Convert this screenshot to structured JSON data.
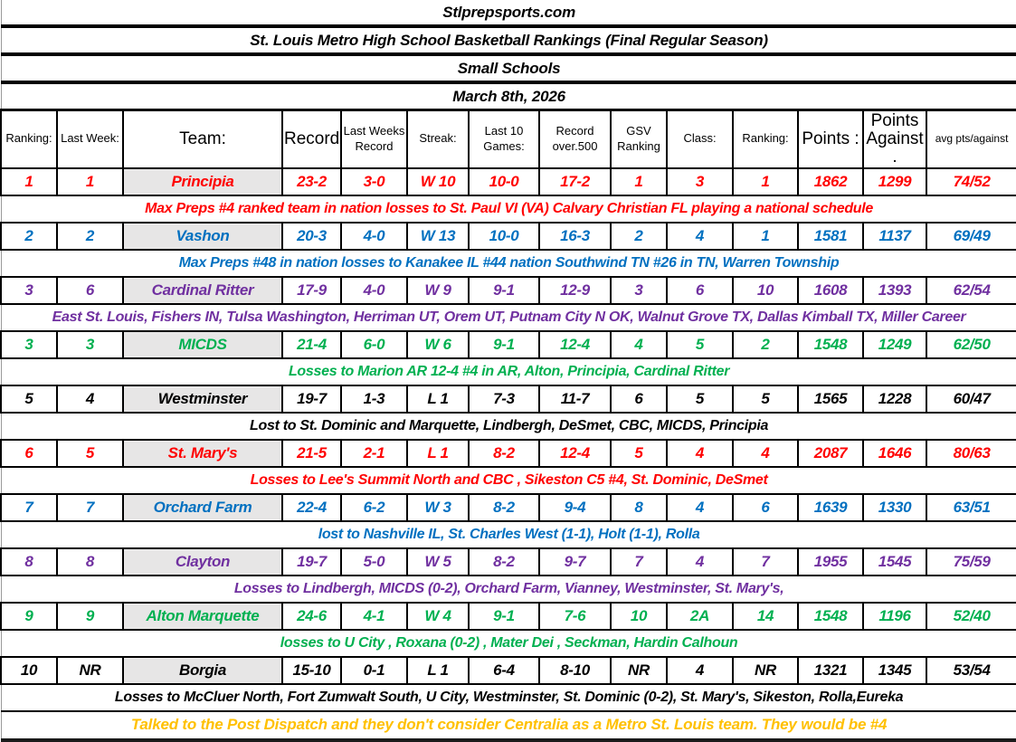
{
  "titles": {
    "site": "Stlprepsports.com",
    "main": "St. Louis Metro High School Basketball Rankings (Final Regular Season)",
    "division": "Small Schools",
    "date": "March 8th, 2026"
  },
  "column_keys": [
    "ranking",
    "last_week",
    "team",
    "record",
    "last_weeks_record",
    "streak",
    "last_10",
    "over_500",
    "gsv",
    "class",
    "class_ranking",
    "points",
    "points_against",
    "avg"
  ],
  "columns": [
    {
      "key": "ranking",
      "label": "Ranking:"
    },
    {
      "key": "last_week",
      "label": "Last Week:"
    },
    {
      "key": "team",
      "label": "Team:"
    },
    {
      "key": "record",
      "label": "Record:"
    },
    {
      "key": "last_weeks_record",
      "label": "Last Weeks Record"
    },
    {
      "key": "streak",
      "label": "Streak:"
    },
    {
      "key": "last_10",
      "label": "Last 10 Games:"
    },
    {
      "key": "over_500",
      "label": "Record over.500"
    },
    {
      "key": "gsv",
      "label": "GSV Ranking"
    },
    {
      "key": "class",
      "label": "Class:"
    },
    {
      "key": "class_ranking",
      "label": "Ranking:"
    },
    {
      "key": "points",
      "label": "Points :"
    },
    {
      "key": "points_against",
      "label": "Points Against ."
    },
    {
      "key": "avg",
      "label": "avg pts/against"
    }
  ],
  "colors": {
    "red": "#FF0000",
    "blue": "#0070C0",
    "purple": "#7030A0",
    "green": "#00B050",
    "black": "#000000",
    "gold": "#FFC000",
    "team_cell_bg": "#E7E6E6"
  },
  "teams": [
    {
      "color": "red",
      "ranking": "1",
      "last_week": "1",
      "team": "Principia",
      "record": "23-2",
      "last_weeks_record": "3-0",
      "streak": "W 10",
      "last_10": "10-0",
      "over_500": "17-2",
      "gsv": "1",
      "class": "3",
      "class_ranking": "1",
      "points": "1862",
      "points_against": "1299",
      "avg": "74/52",
      "note": "Max Preps #4 ranked team in nation losses to St. Paul VI (VA) Calvary Christian FL playing a national schedule"
    },
    {
      "color": "blue",
      "ranking": "2",
      "last_week": "2",
      "team": "Vashon",
      "record": "20-3",
      "last_weeks_record": "4-0",
      "streak": "W 13",
      "last_10": "10-0",
      "over_500": "16-3",
      "gsv": "2",
      "class": "4",
      "class_ranking": "1",
      "points": "1581",
      "points_against": "1137",
      "avg": "69/49",
      "note": "Max Preps #48 in nation  losses to Kanakee IL #44 nation Southwind TN #26 in TN, Warren Township"
    },
    {
      "color": "purple",
      "ranking": "3",
      "last_week": "6",
      "team": "Cardinal Ritter",
      "record": "17-9",
      "last_weeks_record": "4-0",
      "streak": "W 9",
      "last_10": "9-1",
      "over_500": "12-9",
      "gsv": "3",
      "class": "6",
      "class_ranking": "10",
      "points": "1608",
      "points_against": "1393",
      "avg": "62/54",
      "note": "East St. Louis, Fishers IN, Tulsa Washington, Herriman UT, Orem UT, Putnam City N OK, Walnut Grove TX, Dallas Kimball TX, Miller Career"
    },
    {
      "color": "green",
      "ranking": "3",
      "last_week": "3",
      "team": "MICDS",
      "record": "21-4",
      "last_weeks_record": "6-0",
      "streak": "W 6",
      "last_10": "9-1",
      "over_500": "12-4",
      "gsv": "4",
      "class": "5",
      "class_ranking": "2",
      "points": "1548",
      "points_against": "1249",
      "avg": "62/50",
      "note": "Losses to Marion AR 12-4  #4 in AR, Alton, Principia, Cardinal Ritter"
    },
    {
      "color": "black",
      "ranking": "5",
      "last_week": "4",
      "team": "Westminster",
      "record": "19-7",
      "last_weeks_record": "1-3",
      "streak": "L 1",
      "last_10": "7-3",
      "over_500": "11-7",
      "gsv": "6",
      "class": "5",
      "class_ranking": "5",
      "points": "1565",
      "points_against": "1228",
      "avg": "60/47",
      "note": "Lost to St. Dominic and Marquette, Lindbergh, DeSmet, CBC, MICDS, Principia"
    },
    {
      "color": "red",
      "ranking": "6",
      "last_week": "5",
      "team": "St. Mary's",
      "record": "21-5",
      "last_weeks_record": "2-1",
      "streak": "L 1",
      "last_10": "8-2",
      "over_500": "12-4",
      "gsv": "5",
      "class": "4",
      "class_ranking": "4",
      "points": "2087",
      "points_against": "1646",
      "avg": "80/63",
      "note": "Losses to Lee's Summit North  and CBC , Sikeston C5 #4, St. Dominic, DeSmet"
    },
    {
      "color": "blue",
      "ranking": "7",
      "last_week": "7",
      "team": "Orchard Farm",
      "record": "22-4",
      "last_weeks_record": "6-2",
      "streak": "W 3",
      "last_10": "8-2",
      "over_500": "9-4",
      "gsv": "8",
      "class": "4",
      "class_ranking": "6",
      "points": "1639",
      "points_against": "1330",
      "avg": "63/51",
      "note": "lost to Nashville IL, St. Charles West (1-1), Holt (1-1), Rolla"
    },
    {
      "color": "purple",
      "ranking": "8",
      "last_week": "8",
      "team": "Clayton",
      "record": "19-7",
      "last_weeks_record": "5-0",
      "streak": "W 5",
      "last_10": "8-2",
      "over_500": "9-7",
      "gsv": "7",
      "class": "4",
      "class_ranking": "7",
      "points": "1955",
      "points_against": "1545",
      "avg": "75/59",
      "note": "Losses to Lindbergh, MICDS (0-2), Orchard Farm, Vianney, Westminster, St. Mary's,"
    },
    {
      "color": "green",
      "ranking": "9",
      "last_week": "9",
      "team": "Alton Marquette",
      "record": "24-6",
      "last_weeks_record": "4-1",
      "streak": "W 4",
      "last_10": "9-1",
      "over_500": "7-6",
      "gsv": "10",
      "class": "2A",
      "class_ranking": "14",
      "points": "1548",
      "points_against": "1196",
      "avg": "52/40",
      "note": "losses to U City , Roxana (0-2) , Mater Dei , Seckman, Hardin Calhoun"
    },
    {
      "color": "black",
      "ranking": "10",
      "last_week": "NR",
      "team": "Borgia",
      "record": "15-10",
      "last_weeks_record": "0-1",
      "streak": "L 1",
      "last_10": "6-4",
      "over_500": "8-10",
      "gsv": "NR",
      "class": "4",
      "class_ranking": "NR",
      "points": "1321",
      "points_against": "1345",
      "avg": "53/54",
      "note": "Losses to McCluer North, Fort Zumwalt South, U City, Westminster, St. Dominic (0-2), St. Mary's, Sikeston, Rolla,Eureka"
    }
  ],
  "footer": {
    "color": "gold",
    "text": "Talked to the Post Dispatch and they don't consider Centralia as a Metro St. Louis team. They would be #4"
  }
}
